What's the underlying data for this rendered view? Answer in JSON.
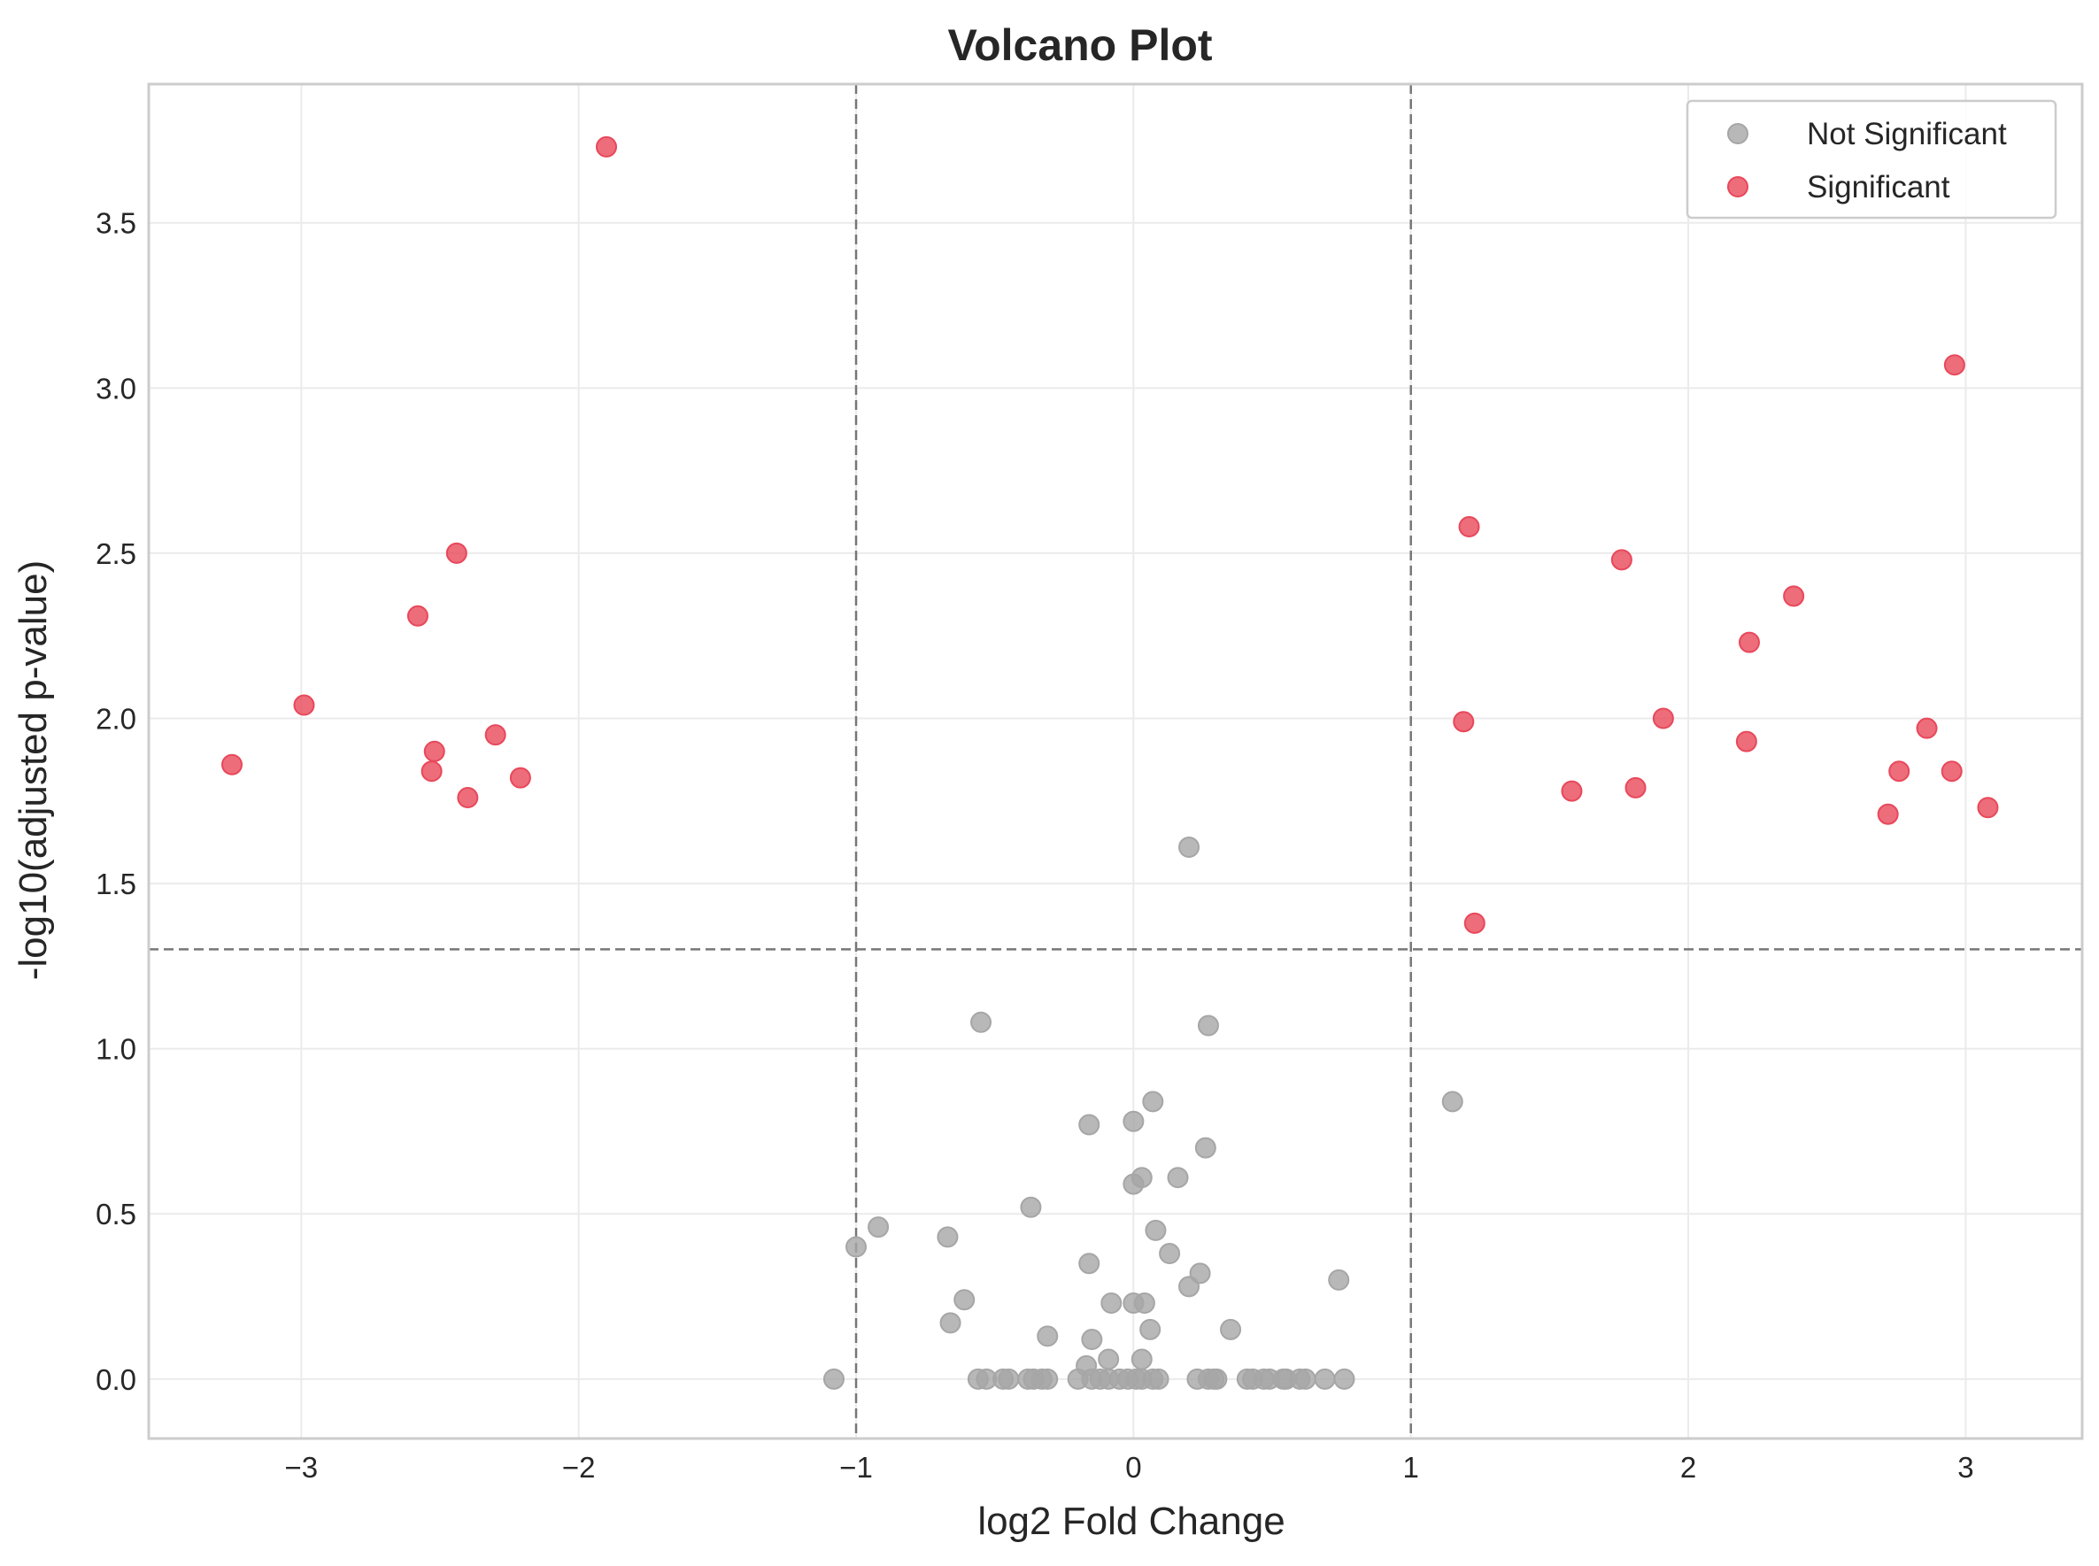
{
  "chart_data": {
    "type": "scatter",
    "title": "Volcano Plot",
    "xlabel": "log2 Fold Change",
    "ylabel": "-log10(adjusted p-value)",
    "xlim": [
      -3.55,
      3.42
    ],
    "ylim": [
      -0.18,
      3.92
    ],
    "xticks": [
      -3,
      -2,
      -1,
      0,
      1,
      2,
      3
    ],
    "xtick_labels": [
      "−3",
      "−2",
      "−1",
      "0",
      "1",
      "2",
      "3"
    ],
    "yticks": [
      0.0,
      0.5,
      1.0,
      1.5,
      2.0,
      2.5,
      3.0,
      3.5
    ],
    "ytick_labels": [
      "0.0",
      "0.5",
      "1.0",
      "1.5",
      "2.0",
      "2.5",
      "3.0",
      "3.5"
    ],
    "grid": true,
    "legend_position": "top-right",
    "thresholds": {
      "fold_change": [
        -1,
        1
      ],
      "neg_log10_p": 1.301
    },
    "series": [
      {
        "name": "Not Significant",
        "color": "#a6a6a6",
        "points": [
          [
            0.2,
            1.61
          ],
          [
            -0.55,
            1.08
          ],
          [
            0.27,
            1.07
          ],
          [
            1.15,
            0.84
          ],
          [
            0.07,
            0.84
          ],
          [
            -0.16,
            0.77
          ],
          [
            0.0,
            0.78
          ],
          [
            0.26,
            0.7
          ],
          [
            0.03,
            0.61
          ],
          [
            0.16,
            0.61
          ],
          [
            0.0,
            0.59
          ],
          [
            -0.37,
            0.52
          ],
          [
            -0.92,
            0.46
          ],
          [
            0.08,
            0.45
          ],
          [
            -0.67,
            0.43
          ],
          [
            -1.0,
            0.4
          ],
          [
            0.13,
            0.38
          ],
          [
            -0.16,
            0.35
          ],
          [
            0.24,
            0.32
          ],
          [
            0.2,
            0.28
          ],
          [
            0.74,
            0.3
          ],
          [
            -0.61,
            0.24
          ],
          [
            -0.08,
            0.23
          ],
          [
            0.0,
            0.23
          ],
          [
            0.04,
            0.23
          ],
          [
            -0.66,
            0.17
          ],
          [
            0.06,
            0.15
          ],
          [
            0.35,
            0.15
          ],
          [
            -0.31,
            0.13
          ],
          [
            -0.15,
            0.12
          ],
          [
            -0.09,
            0.06
          ],
          [
            0.03,
            0.06
          ],
          [
            -0.17,
            0.04
          ],
          [
            -1.08,
            0.0
          ],
          [
            -0.56,
            0.0
          ],
          [
            -0.53,
            0.0
          ],
          [
            -0.47,
            0.0
          ],
          [
            -0.45,
            0.0
          ],
          [
            -0.38,
            0.0
          ],
          [
            -0.36,
            0.0
          ],
          [
            -0.33,
            0.0
          ],
          [
            -0.31,
            0.0
          ],
          [
            -0.2,
            0.0
          ],
          [
            -0.15,
            0.0
          ],
          [
            -0.12,
            0.0
          ],
          [
            -0.09,
            0.0
          ],
          [
            -0.05,
            0.0
          ],
          [
            -0.02,
            0.0
          ],
          [
            0.01,
            0.0
          ],
          [
            0.03,
            0.0
          ],
          [
            0.07,
            0.0
          ],
          [
            0.09,
            0.0
          ],
          [
            0.23,
            0.0
          ],
          [
            0.27,
            0.0
          ],
          [
            0.29,
            0.0
          ],
          [
            0.3,
            0.0
          ],
          [
            0.41,
            0.0
          ],
          [
            0.43,
            0.0
          ],
          [
            0.47,
            0.0
          ],
          [
            0.49,
            0.0
          ],
          [
            0.54,
            0.0
          ],
          [
            0.55,
            0.0
          ],
          [
            0.6,
            0.0
          ],
          [
            0.62,
            0.0
          ],
          [
            0.69,
            0.0
          ],
          [
            0.76,
            0.0
          ]
        ]
      },
      {
        "name": "Significant",
        "color": "#e8485a",
        "points": [
          [
            -1.9,
            3.73
          ],
          [
            -3.25,
            1.86
          ],
          [
            -2.99,
            2.04
          ],
          [
            -2.58,
            2.31
          ],
          [
            -2.44,
            2.5
          ],
          [
            -2.52,
            1.9
          ],
          [
            -2.53,
            1.84
          ],
          [
            -2.4,
            1.76
          ],
          [
            -2.3,
            1.95
          ],
          [
            -2.21,
            1.82
          ],
          [
            1.21,
            2.58
          ],
          [
            1.19,
            1.99
          ],
          [
            1.23,
            1.38
          ],
          [
            1.58,
            1.78
          ],
          [
            1.76,
            2.48
          ],
          [
            1.81,
            1.79
          ],
          [
            1.91,
            2.0
          ],
          [
            2.22,
            2.23
          ],
          [
            2.21,
            1.93
          ],
          [
            2.38,
            2.37
          ],
          [
            2.72,
            1.71
          ],
          [
            2.76,
            1.84
          ],
          [
            2.86,
            1.97
          ],
          [
            2.96,
            3.07
          ],
          [
            2.95,
            1.84
          ],
          [
            3.08,
            1.73
          ]
        ]
      }
    ]
  }
}
